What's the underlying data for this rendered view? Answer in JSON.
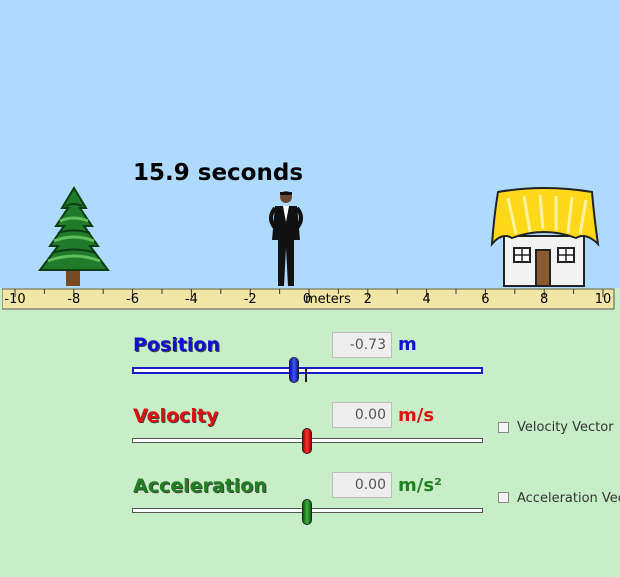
{
  "time_display": "15.9 seconds",
  "ruler": {
    "ticks": [
      "-10",
      "-8",
      "-6",
      "-4",
      "-2",
      "0",
      "2",
      "4",
      "6",
      "8",
      "10"
    ],
    "unit": "meters"
  },
  "controls": {
    "position": {
      "label": "Position",
      "value": "-0.73",
      "unit": "m",
      "color": "#1010d0"
    },
    "velocity": {
      "label": "Velocity",
      "value": "0.00",
      "unit": "m/s",
      "color": "#e01010",
      "checkbox_label": "Velocity Vector",
      "checkbox_checked": false
    },
    "acceleration": {
      "label": "Acceleration",
      "value": "0.00",
      "unit": "m/s²",
      "color": "#208020",
      "checkbox_label": "Acceleration Vector",
      "checkbox_checked": false
    }
  }
}
